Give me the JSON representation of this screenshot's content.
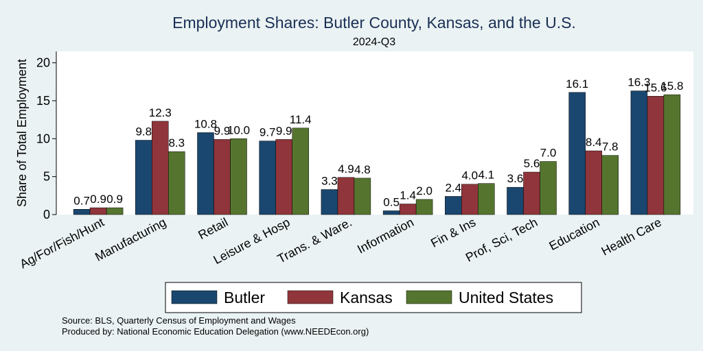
{
  "chart_data": {
    "type": "bar",
    "title": "Employment Shares: Butler County, Kansas, and the U.S.",
    "subtitle": "2024-Q3",
    "xlabel": "",
    "ylabel": "Share of Total Employment",
    "ylim": [
      0,
      21.5
    ],
    "yticks": [
      0,
      5,
      10,
      15,
      20
    ],
    "grid": false,
    "legend_position": "bottom",
    "categories": [
      "Ag/For/Fish/Hunt",
      "Manufacturing",
      "Retail",
      "Leisure & Hosp",
      "Trans. & Ware.",
      "Information",
      "Fin & Ins",
      "Prof, Sci, Tech",
      "Education",
      "Health Care"
    ],
    "series": [
      {
        "name": "Butler",
        "color": "#1a476f",
        "values": [
          0.7,
          9.8,
          10.8,
          9.7,
          3.3,
          0.5,
          2.4,
          3.6,
          16.1,
          16.3
        ]
      },
      {
        "name": "Kansas",
        "color": "#90353b",
        "values": [
          0.9,
          12.3,
          9.9,
          9.9,
          4.9,
          1.4,
          4.0,
          5.6,
          8.4,
          15.6
        ]
      },
      {
        "name": "United States",
        "color": "#55752f",
        "values": [
          0.9,
          8.3,
          10.0,
          11.4,
          4.8,
          2.0,
          4.1,
          7.0,
          7.8,
          15.8
        ]
      }
    ]
  },
  "notes": {
    "source": "Source: BLS, Quarterly Census of Employment and Wages",
    "produced_by": "Produced by: National Economic Education Delegation (www.NEEDEcon.org)"
  }
}
